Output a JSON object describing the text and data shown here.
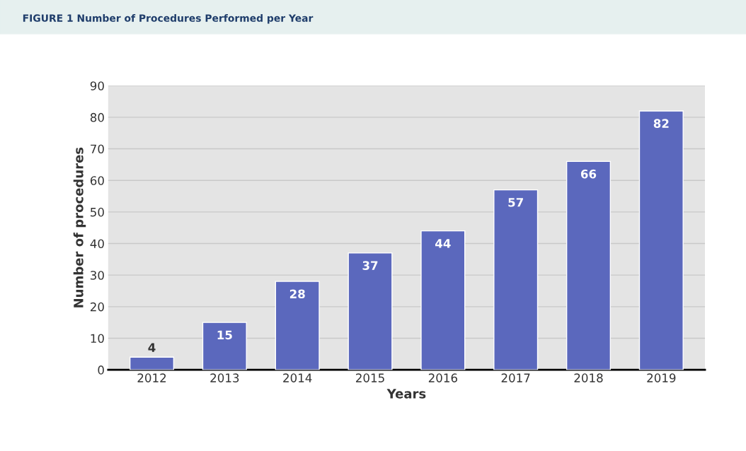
{
  "chart_data": {
    "type": "bar",
    "title": "FIGURE 1 Number of Procedures Performed per Year",
    "xlabel": "Years",
    "ylabel": "Number of procedures",
    "categories": [
      "2012",
      "2013",
      "2014",
      "2015",
      "2016",
      "2017",
      "2018",
      "2019"
    ],
    "values": [
      4,
      15,
      28,
      37,
      44,
      57,
      66,
      82
    ],
    "color": "#5b68bd",
    "ylim": [
      0,
      90
    ],
    "yticks": [
      0,
      10,
      20,
      30,
      40,
      50,
      60,
      70,
      80,
      90
    ],
    "grid": "y",
    "data_labels": true
  }
}
